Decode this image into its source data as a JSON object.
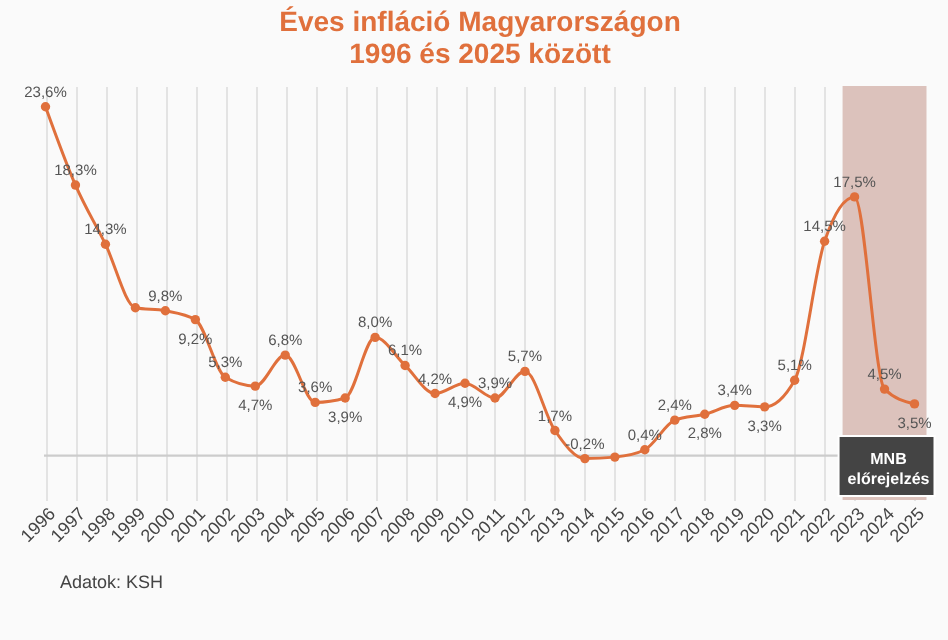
{
  "chart_data": {
    "type": "line",
    "title": "Éves infláció Magyarországon\n1996 és 2025 között",
    "categories": [
      "1996",
      "1997",
      "1998",
      "1999",
      "2000",
      "2001",
      "2002",
      "2003",
      "2004",
      "2005",
      "2006",
      "2007",
      "2008",
      "2009",
      "2010",
      "2011",
      "2012",
      "2013",
      "2014",
      "2015",
      "2016",
      "2017",
      "2018",
      "2019",
      "2020",
      "2021",
      "2022",
      "2023",
      "2024",
      "2025"
    ],
    "series": [
      {
        "color": "#e0703c",
        "values": [
          23.6,
          18.3,
          14.3,
          10.0,
          9.8,
          9.2,
          5.3,
          4.7,
          6.8,
          3.6,
          3.9,
          8.0,
          6.1,
          4.2,
          4.9,
          3.9,
          5.7,
          1.7,
          -0.2,
          -0.1,
          0.4,
          2.4,
          2.8,
          3.4,
          3.3,
          5.1,
          14.5,
          17.5,
          4.5,
          3.5
        ],
        "value_labels": [
          "23,6%",
          "18,3%",
          "14,3%",
          null,
          "9,8%",
          "9,2%",
          "5,3%",
          "4,7%",
          "6,8%",
          "3,6%",
          "3,9%",
          "8,0%",
          "6,1%",
          "4,2%",
          "4,9%",
          "3,9%",
          "5,7%",
          "1,7%",
          "-0,2%",
          null,
          "0,4%",
          "2,4%",
          "2,8%",
          "3,4%",
          "3,3%",
          "5,1%",
          "14,5%",
          "17,5%",
          "4,5%",
          "3,5%"
        ]
      }
    ],
    "ylim": [
      -3,
      25
    ],
    "grid": "x",
    "marker": "circle",
    "tick_labels": "x",
    "ref_lines": [
      {
        "axis": "y",
        "value": 0,
        "color": "#cccccc"
      }
    ],
    "bands": [
      {
        "axis": "x",
        "from": "2023",
        "to": "2025",
        "label": "MNB előrejelzés",
        "color": "#dcc2bc"
      }
    ],
    "annotations": [
      "Adatok: KSH"
    ]
  }
}
